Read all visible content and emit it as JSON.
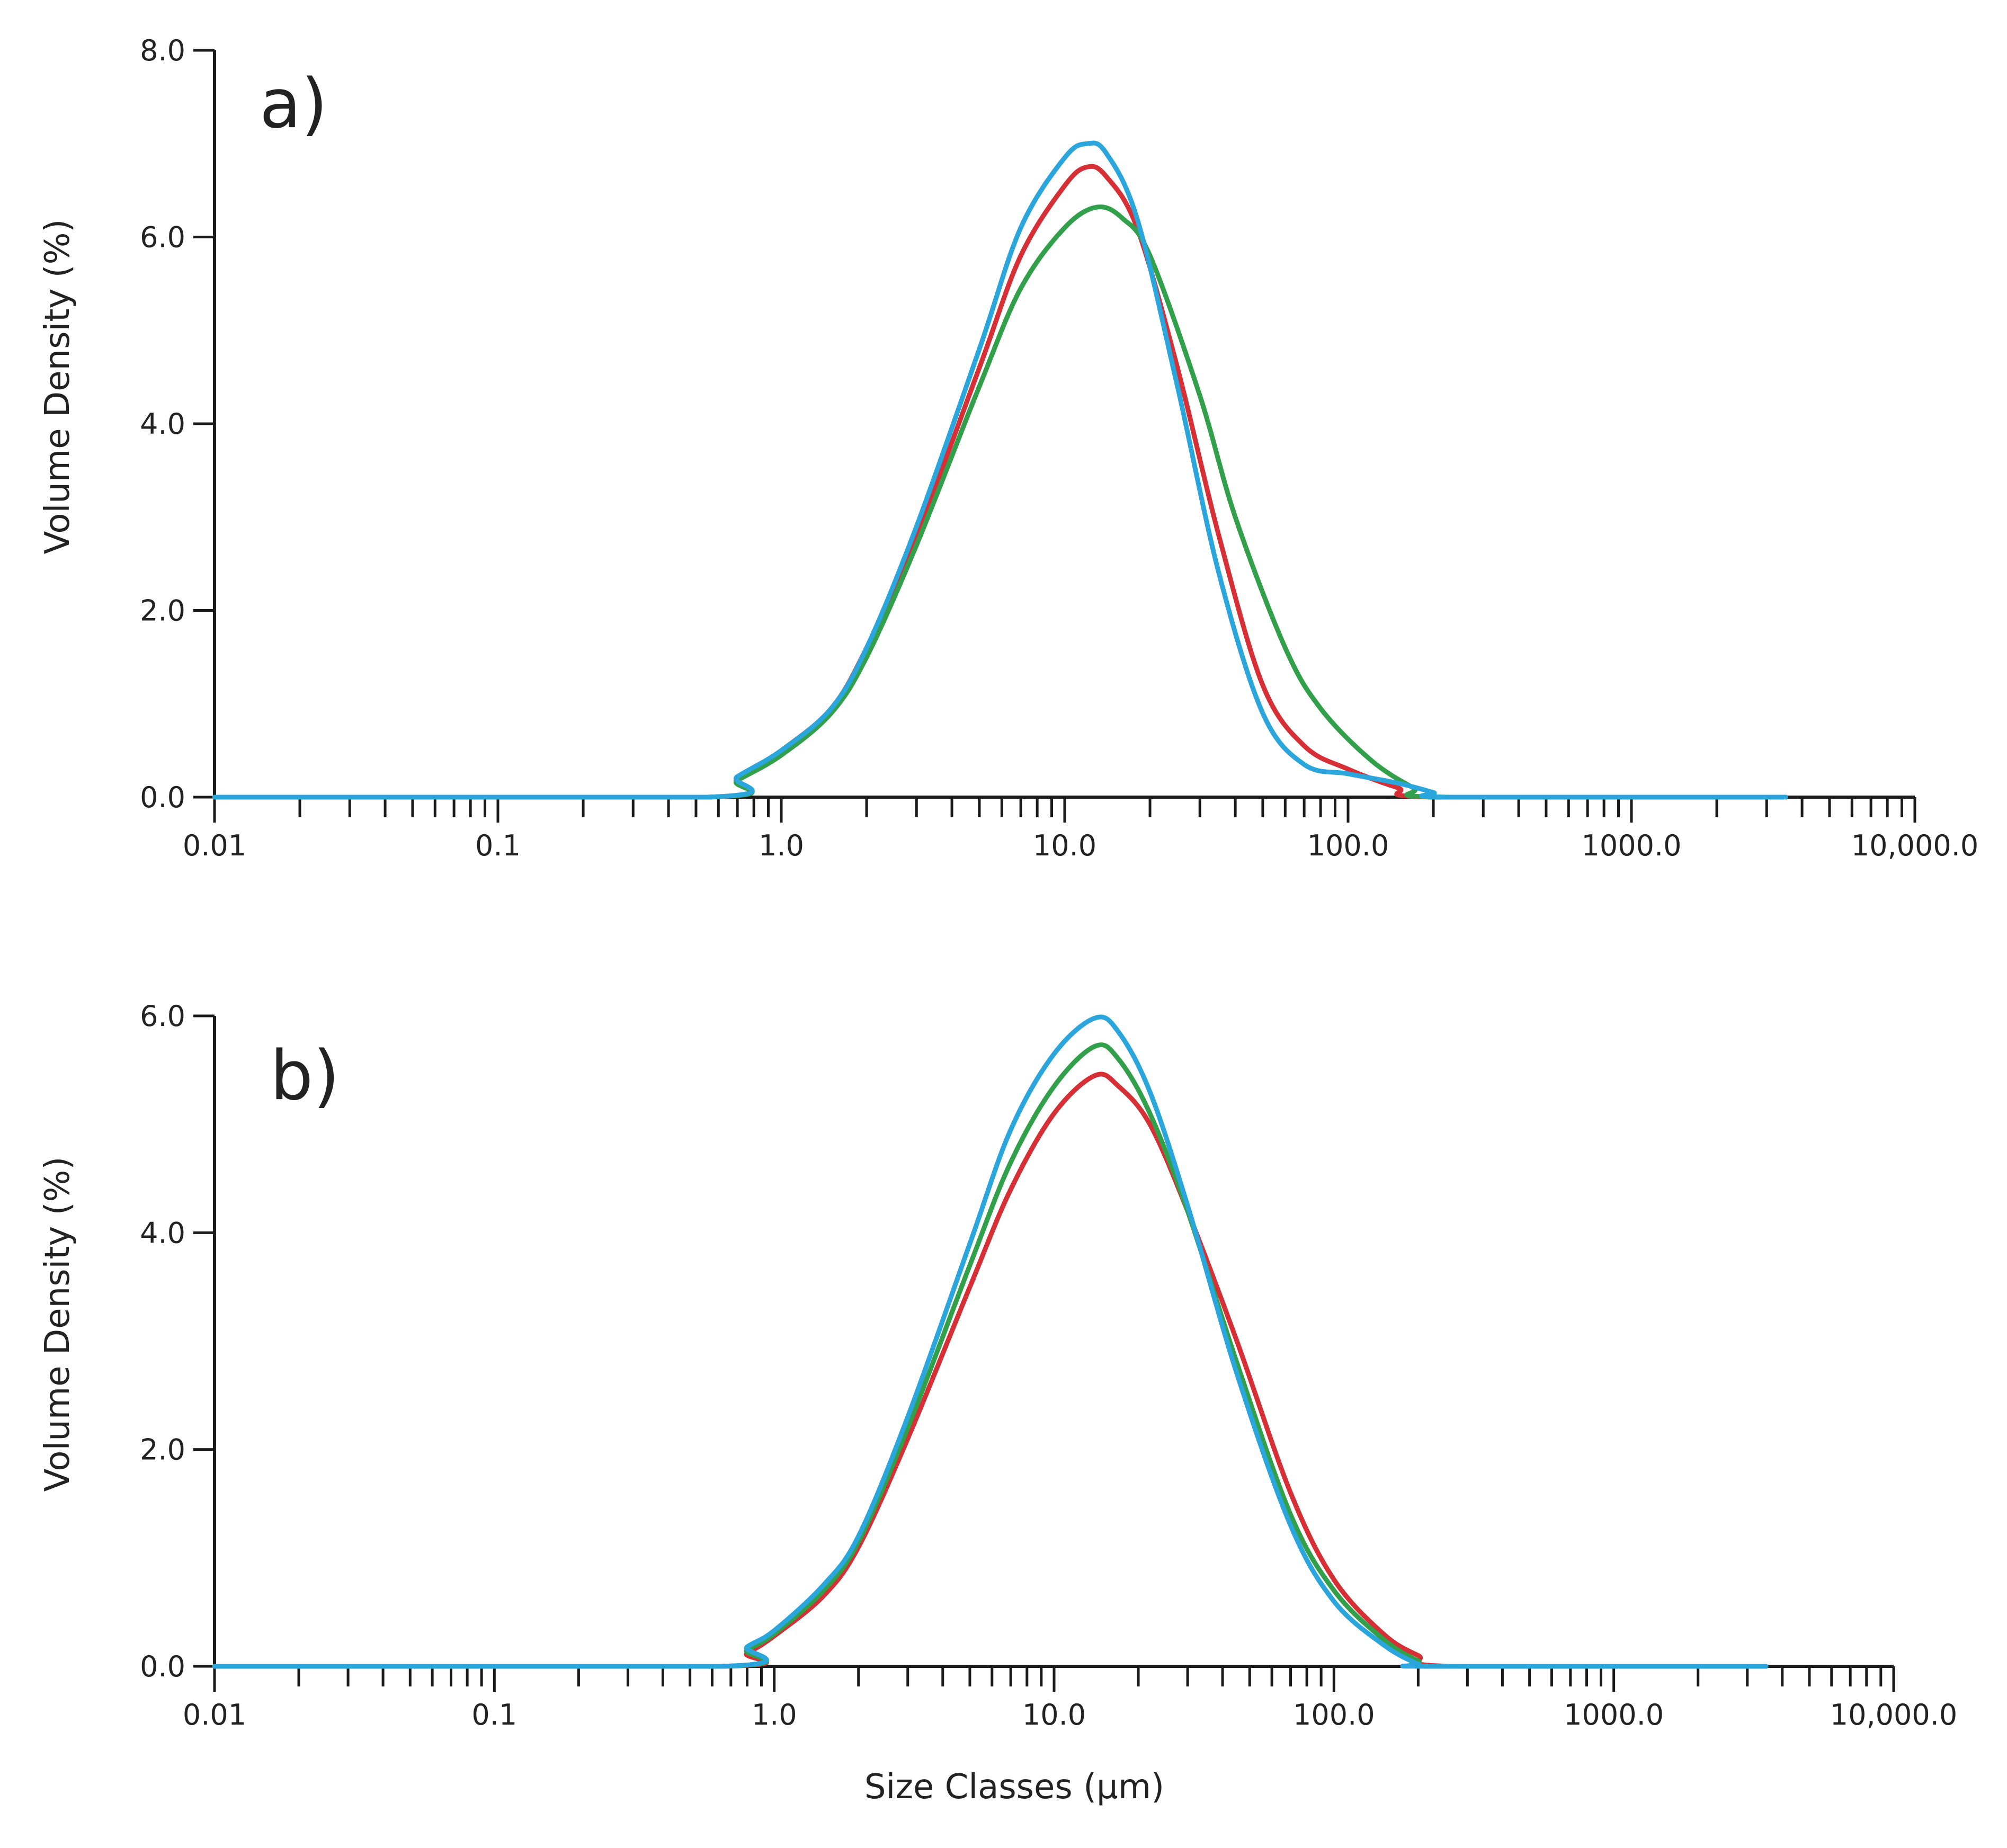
{
  "chart_data": [
    {
      "type": "line",
      "panel_label": "a)",
      "xlabel": "",
      "ylabel": "Volume Density (%)",
      "xscale": "log",
      "xlim": [
        0.01,
        10000
      ],
      "ylim": [
        0,
        8
      ],
      "x_ticks": [
        "0.01",
        "0.1",
        "1.0",
        "10.0",
        "100.0",
        "1000.0",
        "10,000.0"
      ],
      "y_ticks": [
        "0.0",
        "2.0",
        "4.0",
        "6.0",
        "8.0"
      ],
      "x_tick_values": [
        0.01,
        0.1,
        1,
        10,
        100,
        1000,
        10000
      ],
      "y_tick_values": [
        0,
        2,
        4,
        6,
        8
      ],
      "x_max_data": 3500,
      "series": [
        {
          "name": "red",
          "color": "#d62f35",
          "points": [
            [
              0.01,
              0
            ],
            [
              0.55,
              0
            ],
            [
              0.7,
              0.2
            ],
            [
              1.0,
              0.5
            ],
            [
              1.5,
              0.95
            ],
            [
              2.0,
              1.6
            ],
            [
              3.0,
              2.8
            ],
            [
              5.0,
              4.6
            ],
            [
              7.0,
              5.8
            ],
            [
              10.0,
              6.55
            ],
            [
              12.0,
              6.75
            ],
            [
              14.0,
              6.65
            ],
            [
              18.0,
              6.1
            ],
            [
              25.0,
              4.6
            ],
            [
              35.0,
              2.8
            ],
            [
              50.0,
              1.2
            ],
            [
              70.0,
              0.55
            ],
            [
              100.0,
              0.3
            ],
            [
              150.0,
              0.1
            ],
            [
              200.0,
              0
            ],
            [
              3500,
              0
            ]
          ]
        },
        {
          "name": "green",
          "color": "#32a04a",
          "points": [
            [
              0.01,
              0
            ],
            [
              0.55,
              0
            ],
            [
              0.7,
              0.18
            ],
            [
              1.0,
              0.45
            ],
            [
              1.5,
              0.9
            ],
            [
              2.0,
              1.5
            ],
            [
              3.0,
              2.7
            ],
            [
              5.0,
              4.4
            ],
            [
              7.0,
              5.45
            ],
            [
              10.0,
              6.1
            ],
            [
              13.0,
              6.32
            ],
            [
              16.0,
              6.2
            ],
            [
              20.0,
              5.8
            ],
            [
              30.0,
              4.3
            ],
            [
              40.0,
              3.0
            ],
            [
              60.0,
              1.6
            ],
            [
              80.0,
              0.95
            ],
            [
              120.0,
              0.4
            ],
            [
              170.0,
              0.1
            ],
            [
              210.0,
              0
            ],
            [
              3500,
              0
            ]
          ]
        },
        {
          "name": "blue",
          "color": "#2aa6dd",
          "points": [
            [
              0.01,
              0
            ],
            [
              0.55,
              0
            ],
            [
              0.7,
              0.22
            ],
            [
              1.0,
              0.5
            ],
            [
              1.5,
              0.95
            ],
            [
              2.0,
              1.6
            ],
            [
              3.0,
              2.9
            ],
            [
              5.0,
              4.8
            ],
            [
              7.0,
              6.1
            ],
            [
              10.0,
              6.85
            ],
            [
              12.0,
              7.0
            ],
            [
              14.0,
              6.9
            ],
            [
              18.0,
              6.2
            ],
            [
              25.0,
              4.4
            ],
            [
              35.0,
              2.4
            ],
            [
              50.0,
              0.9
            ],
            [
              70.0,
              0.35
            ],
            [
              100.0,
              0.25
            ],
            [
              150.0,
              0.15
            ],
            [
              200.0,
              0.05
            ],
            [
              230.0,
              0
            ],
            [
              3500,
              0
            ]
          ]
        }
      ]
    },
    {
      "type": "line",
      "panel_label": "b)",
      "xlabel": "Size Classes (µm)",
      "ylabel": "Volume Density (%)",
      "xscale": "log",
      "xlim": [
        0.01,
        10000
      ],
      "ylim": [
        0,
        6
      ],
      "x_ticks": [
        "0.01",
        "0.1",
        "1.0",
        "10.0",
        "100.0",
        "1000.0",
        "10,000.0"
      ],
      "y_ticks": [
        "0.0",
        "2.0",
        "4.0",
        "6.0"
      ],
      "x_tick_values": [
        0.01,
        0.1,
        1,
        10,
        100,
        1000,
        10000
      ],
      "y_tick_values": [
        0,
        2,
        4,
        6
      ],
      "x_max_data": 3500,
      "series": [
        {
          "name": "red",
          "color": "#d62f35",
          "points": [
            [
              0.01,
              0
            ],
            [
              0.65,
              0
            ],
            [
              0.8,
              0.12
            ],
            [
              1.0,
              0.28
            ],
            [
              1.5,
              0.65
            ],
            [
              2.0,
              1.1
            ],
            [
              3.0,
              2.1
            ],
            [
              5.0,
              3.5
            ],
            [
              7.0,
              4.4
            ],
            [
              10.0,
              5.1
            ],
            [
              14.0,
              5.45
            ],
            [
              17.0,
              5.35
            ],
            [
              22.0,
              5.0
            ],
            [
              30.0,
              4.2
            ],
            [
              45.0,
              3.0
            ],
            [
              70.0,
              1.6
            ],
            [
              100.0,
              0.8
            ],
            [
              150.0,
              0.3
            ],
            [
              200.0,
              0.1
            ],
            [
              260.0,
              0
            ],
            [
              3500,
              0
            ]
          ]
        },
        {
          "name": "green",
          "color": "#32a04a",
          "points": [
            [
              0.01,
              0
            ],
            [
              0.65,
              0
            ],
            [
              0.8,
              0.15
            ],
            [
              1.0,
              0.3
            ],
            [
              1.5,
              0.7
            ],
            [
              2.0,
              1.15
            ],
            [
              3.0,
              2.2
            ],
            [
              5.0,
              3.7
            ],
            [
              7.0,
              4.65
            ],
            [
              10.0,
              5.35
            ],
            [
              14.0,
              5.72
            ],
            [
              17.0,
              5.6
            ],
            [
              22.0,
              5.1
            ],
            [
              30.0,
              4.2
            ],
            [
              45.0,
              2.8
            ],
            [
              70.0,
              1.4
            ],
            [
              100.0,
              0.7
            ],
            [
              150.0,
              0.25
            ],
            [
              200.0,
              0.05
            ],
            [
              240.0,
              0
            ],
            [
              3500,
              0
            ]
          ]
        },
        {
          "name": "blue",
          "color": "#2aa6dd",
          "points": [
            [
              0.01,
              0
            ],
            [
              0.65,
              0
            ],
            [
              0.8,
              0.18
            ],
            [
              1.0,
              0.33
            ],
            [
              1.5,
              0.75
            ],
            [
              2.0,
              1.2
            ],
            [
              3.0,
              2.3
            ],
            [
              5.0,
              3.9
            ],
            [
              7.0,
              4.95
            ],
            [
              10.0,
              5.65
            ],
            [
              14.0,
              5.98
            ],
            [
              17.0,
              5.85
            ],
            [
              22.0,
              5.3
            ],
            [
              30.0,
              4.25
            ],
            [
              45.0,
              2.7
            ],
            [
              70.0,
              1.3
            ],
            [
              100.0,
              0.6
            ],
            [
              150.0,
              0.2
            ],
            [
              200.0,
              0.02
            ],
            [
              220.0,
              0
            ],
            [
              3500,
              0
            ]
          ]
        }
      ]
    }
  ]
}
